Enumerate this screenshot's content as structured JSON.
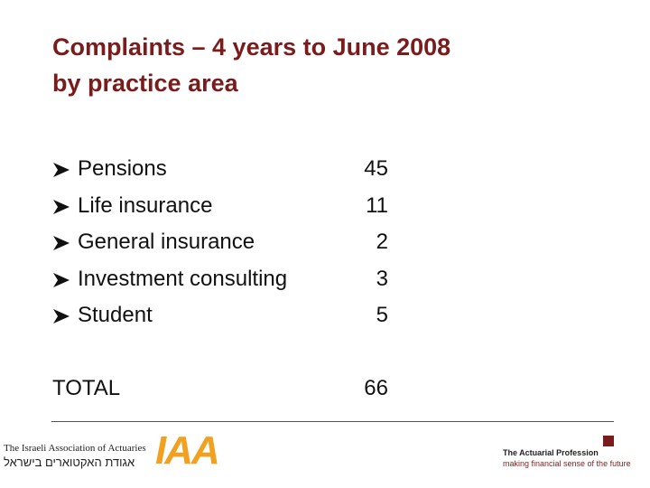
{
  "title": [
    "Complaints – 4 years to June 2008",
    "by practice area"
  ],
  "items": [
    {
      "label": "Pensions",
      "value": 45
    },
    {
      "label": "Life insurance",
      "value": 11
    },
    {
      "label": "General insurance",
      "value": 2
    },
    {
      "label": "Investment consulting",
      "value": 3
    },
    {
      "label": "Student",
      "value": 5
    }
  ],
  "total": {
    "label": "TOTAL",
    "value": 66
  },
  "footer": {
    "left_name": "The Israeli Association of Actuaries",
    "left_hebrew": "אגודת האקטוארים בישראל",
    "logo": "IAA",
    "right_name": "The Actuarial Profession",
    "right_tagline": "making financial sense of the future"
  }
}
